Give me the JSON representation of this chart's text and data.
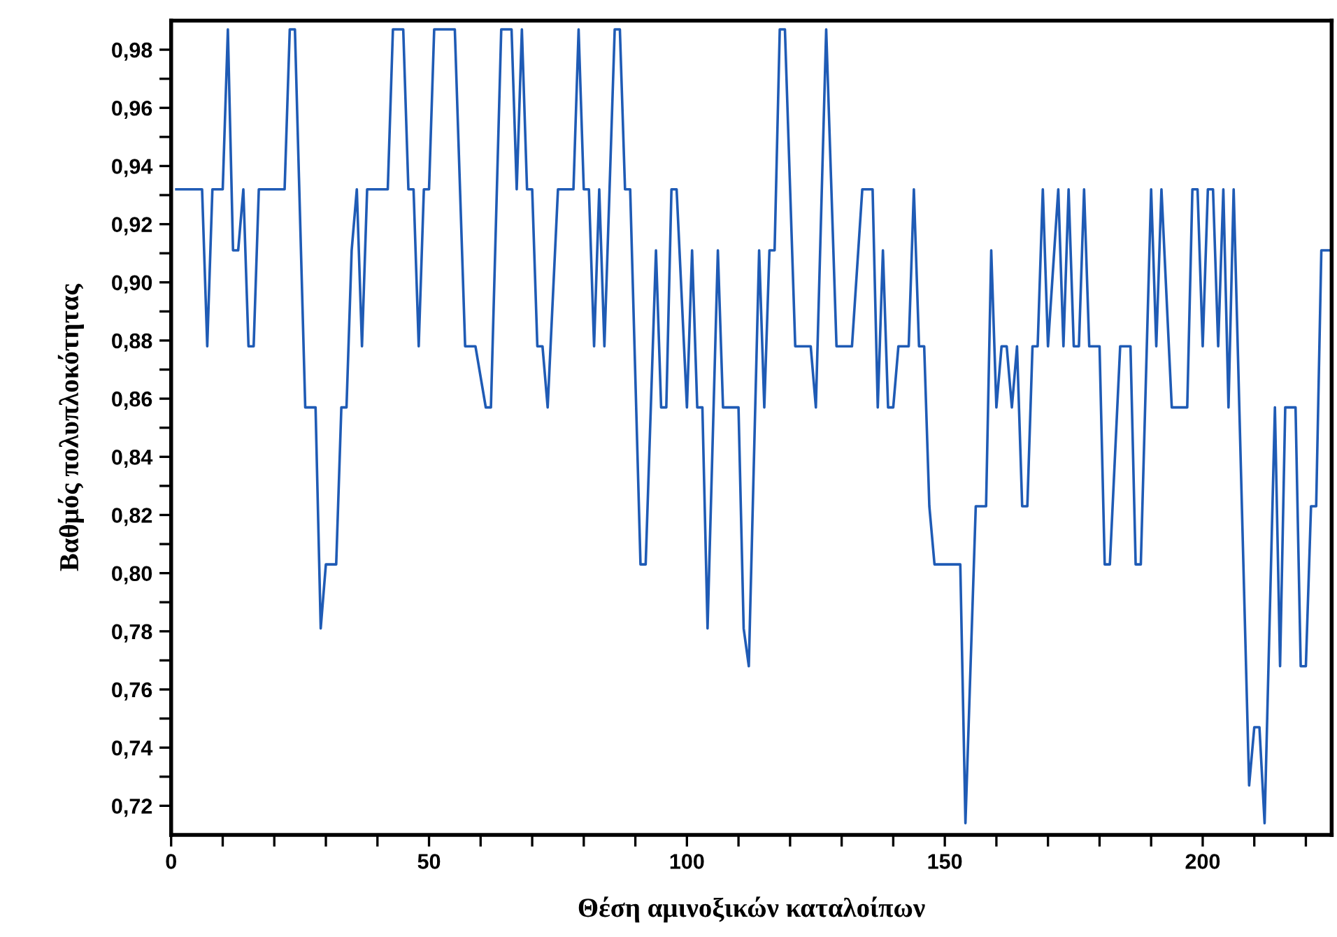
{
  "chart_data": {
    "type": "line",
    "xlabel": "Θέση αμινοξικών καταλοίπων",
    "ylabel": "Βαθμός πολυπλοκότητας",
    "xlim": [
      0,
      225
    ],
    "ylim": [
      0.71,
      0.99
    ],
    "xticks": [
      0,
      {
        "value": 10,
        "label": null
      },
      {
        "value": 20,
        "label": null
      },
      {
        "value": 30,
        "label": null
      },
      {
        "value": 40,
        "label": null
      },
      50,
      {
        "value": 60,
        "label": null
      },
      {
        "value": 70,
        "label": null
      },
      {
        "value": 80,
        "label": null
      },
      {
        "value": 90,
        "label": null
      },
      100,
      {
        "value": 110,
        "label": null
      },
      {
        "value": 120,
        "label": null
      },
      {
        "value": 130,
        "label": null
      },
      {
        "value": 140,
        "label": null
      },
      150,
      {
        "value": 160,
        "label": null
      },
      {
        "value": 170,
        "label": null
      },
      {
        "value": 180,
        "label": null
      },
      {
        "value": 190,
        "label": null
      },
      200,
      {
        "value": 210,
        "label": null
      },
      {
        "value": 220,
        "label": null
      }
    ],
    "yticks": [
      {
        "value": 0.72,
        "label": "0,72"
      },
      {
        "value": 0.73,
        "label": null
      },
      {
        "value": 0.74,
        "label": "0,74"
      },
      {
        "value": 0.75,
        "label": null
      },
      {
        "value": 0.76,
        "label": "0,76"
      },
      {
        "value": 0.77,
        "label": null
      },
      {
        "value": 0.78,
        "label": "0,78"
      },
      {
        "value": 0.79,
        "label": null
      },
      {
        "value": 0.8,
        "label": "0,80"
      },
      {
        "value": 0.81,
        "label": null
      },
      {
        "value": 0.82,
        "label": "0,82"
      },
      {
        "value": 0.83,
        "label": null
      },
      {
        "value": 0.84,
        "label": "0,84"
      },
      {
        "value": 0.85,
        "label": null
      },
      {
        "value": 0.86,
        "label": "0,86"
      },
      {
        "value": 0.87,
        "label": null
      },
      {
        "value": 0.88,
        "label": "0,88"
      },
      {
        "value": 0.89,
        "label": null
      },
      {
        "value": 0.9,
        "label": "0,90"
      },
      {
        "value": 0.91,
        "label": null
      },
      {
        "value": 0.92,
        "label": "0,92"
      },
      {
        "value": 0.93,
        "label": null
      },
      {
        "value": 0.94,
        "label": "0,94"
      },
      {
        "value": 0.95,
        "label": null
      },
      {
        "value": 0.96,
        "label": "0,96"
      },
      {
        "value": 0.97,
        "label": null
      },
      {
        "value": 0.98,
        "label": "0,98"
      }
    ],
    "grid": false,
    "legend": false,
    "marker": "none",
    "line_style": "solid",
    "series": [
      {
        "color": "#1f5bb5",
        "x": [
          1,
          6,
          7,
          8,
          10,
          11,
          12,
          13,
          14,
          15,
          16,
          17,
          22,
          23,
          24,
          26,
          28,
          29,
          30,
          32,
          33,
          34,
          35,
          36,
          37,
          38,
          42,
          43,
          45,
          46,
          47,
          48,
          49,
          50,
          51,
          55,
          57,
          59,
          61,
          62,
          64,
          66,
          67,
          68,
          69,
          70,
          71,
          72,
          73,
          75,
          78,
          79,
          80,
          81,
          82,
          83,
          84,
          85,
          86,
          87,
          88,
          89,
          91,
          92,
          94,
          95,
          96,
          97,
          98,
          100,
          101,
          102,
          103,
          104,
          106,
          107,
          110,
          111,
          112,
          114,
          115,
          116,
          117,
          118,
          119,
          121,
          124,
          125,
          127,
          129,
          132,
          134,
          136,
          137,
          138,
          139,
          140,
          141,
          143,
          144,
          145,
          146,
          147,
          148,
          153,
          154,
          156,
          158,
          159,
          160,
          161,
          162,
          163,
          164,
          165,
          166,
          167,
          168,
          169,
          170,
          172,
          173,
          174,
          175,
          176,
          177,
          178,
          180,
          181,
          182,
          184,
          186,
          187,
          188,
          190,
          191,
          192,
          194,
          197,
          198,
          199,
          200,
          201,
          202,
          203,
          204,
          205,
          206,
          209,
          210,
          211,
          212,
          214,
          215,
          216,
          218,
          219,
          220,
          221,
          222,
          223,
          225
        ],
        "values": [
          0.932,
          0.932,
          0.878,
          0.932,
          0.932,
          0.987,
          0.911,
          0.911,
          0.932,
          0.878,
          0.878,
          0.932,
          0.932,
          0.987,
          0.987,
          0.857,
          0.857,
          0.781,
          0.803,
          0.803,
          0.857,
          0.857,
          0.911,
          0.932,
          0.878,
          0.932,
          0.932,
          0.987,
          0.987,
          0.932,
          0.932,
          0.878,
          0.932,
          0.932,
          0.987,
          0.987,
          0.878,
          0.878,
          0.857,
          0.857,
          0.987,
          0.987,
          0.932,
          0.987,
          0.932,
          0.932,
          0.878,
          0.878,
          0.857,
          0.932,
          0.932,
          0.987,
          0.932,
          0.932,
          0.878,
          0.932,
          0.878,
          0.932,
          0.987,
          0.987,
          0.932,
          0.932,
          0.803,
          0.803,
          0.911,
          0.857,
          0.857,
          0.932,
          0.932,
          0.857,
          0.911,
          0.857,
          0.857,
          0.781,
          0.911,
          0.857,
          0.857,
          0.781,
          0.768,
          0.911,
          0.857,
          0.911,
          0.911,
          0.987,
          0.987,
          0.878,
          0.878,
          0.857,
          0.987,
          0.878,
          0.878,
          0.932,
          0.932,
          0.857,
          0.911,
          0.857,
          0.857,
          0.878,
          0.878,
          0.932,
          0.878,
          0.878,
          0.823,
          0.803,
          0.803,
          0.714,
          0.823,
          0.823,
          0.911,
          0.857,
          0.878,
          0.878,
          0.857,
          0.878,
          0.823,
          0.823,
          0.878,
          0.878,
          0.932,
          0.878,
          0.932,
          0.878,
          0.932,
          0.878,
          0.878,
          0.932,
          0.878,
          0.878,
          0.803,
          0.803,
          0.878,
          0.878,
          0.803,
          0.803,
          0.932,
          0.878,
          0.932,
          0.857,
          0.857,
          0.932,
          0.932,
          0.878,
          0.932,
          0.932,
          0.878,
          0.932,
          0.857,
          0.932,
          0.727,
          0.747,
          0.747,
          0.714,
          0.857,
          0.768,
          0.857,
          0.857,
          0.768,
          0.768,
          0.823,
          0.823,
          0.911,
          0.911
        ]
      }
    ]
  }
}
